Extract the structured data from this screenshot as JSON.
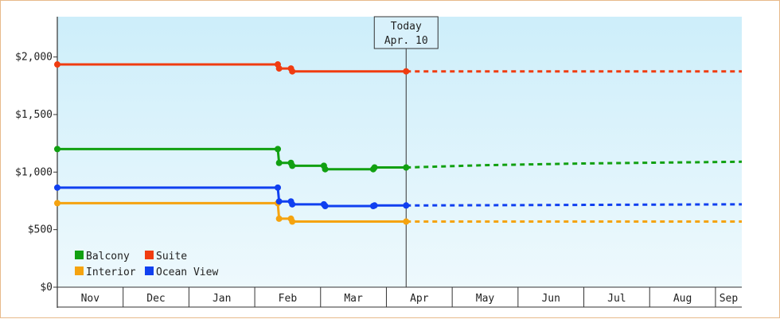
{
  "chart_data": {
    "type": "line",
    "ylim": [
      0,
      2350
    ],
    "yticks": [
      {
        "value": 0,
        "label": "$0"
      },
      {
        "value": 500,
        "label": "$500"
      },
      {
        "value": 1000,
        "label": "$1,000"
      },
      {
        "value": 1500,
        "label": "$1,500"
      },
      {
        "value": 2000,
        "label": "$2,000"
      }
    ],
    "x_domain": [
      0,
      10.4
    ],
    "months": [
      "Nov",
      "Dec",
      "Jan",
      "Feb",
      "Mar",
      "Apr",
      "May",
      "Jun",
      "Jul",
      "Aug",
      "Sep"
    ],
    "today": {
      "x": 5.3,
      "title": "Today",
      "date": "Apr. 10"
    },
    "legend_placement": "bottom-left",
    "grid": false,
    "colors": {
      "Balcony": "#11a011",
      "Suite": "#f03c10",
      "Interior": "#f5a30f",
      "Ocean View": "#1040f0"
    },
    "series": [
      {
        "name": "Balcony",
        "history": [
          [
            0,
            1200
          ],
          [
            3.35,
            1200
          ],
          [
            3.37,
            1080
          ],
          [
            3.55,
            1080
          ],
          [
            3.57,
            1055
          ],
          [
            4.05,
            1055
          ],
          [
            4.07,
            1025
          ],
          [
            4.8,
            1025
          ],
          [
            4.82,
            1040
          ],
          [
            5.3,
            1040
          ]
        ],
        "projection": [
          [
            5.3,
            1040
          ],
          [
            6.5,
            1060
          ],
          [
            8.0,
            1075
          ],
          [
            10.4,
            1090
          ]
        ]
      },
      {
        "name": "Suite",
        "history": [
          [
            0,
            1935
          ],
          [
            3.35,
            1935
          ],
          [
            3.37,
            1900
          ],
          [
            3.55,
            1900
          ],
          [
            3.57,
            1875
          ],
          [
            5.3,
            1875
          ]
        ],
        "projection": [
          [
            5.3,
            1875
          ],
          [
            10.4,
            1875
          ]
        ]
      },
      {
        "name": "Interior",
        "history": [
          [
            0,
            730
          ],
          [
            3.35,
            730
          ],
          [
            3.37,
            595
          ],
          [
            3.55,
            595
          ],
          [
            3.57,
            570
          ],
          [
            5.3,
            570
          ]
        ],
        "projection": [
          [
            5.3,
            570
          ],
          [
            10.4,
            570
          ]
        ]
      },
      {
        "name": "Ocean View",
        "history": [
          [
            0,
            865
          ],
          [
            3.35,
            865
          ],
          [
            3.37,
            745
          ],
          [
            3.55,
            745
          ],
          [
            3.57,
            720
          ],
          [
            4.05,
            720
          ],
          [
            4.07,
            705
          ],
          [
            4.8,
            705
          ],
          [
            4.82,
            710
          ],
          [
            5.3,
            710
          ]
        ],
        "projection": [
          [
            5.3,
            710
          ],
          [
            6.5,
            712
          ],
          [
            8.0,
            715
          ],
          [
            10.4,
            720
          ]
        ]
      }
    ],
    "markers": {
      "Balcony": [
        [
          0,
          1200
        ],
        [
          3.35,
          1200
        ],
        [
          3.37,
          1080
        ],
        [
          3.55,
          1080
        ],
        [
          3.57,
          1055
        ],
        [
          4.05,
          1055
        ],
        [
          4.07,
          1025
        ],
        [
          4.8,
          1025
        ],
        [
          4.82,
          1040
        ],
        [
          5.3,
          1040
        ]
      ],
      "Suite": [
        [
          0,
          1935
        ],
        [
          3.35,
          1935
        ],
        [
          3.37,
          1900
        ],
        [
          3.55,
          1900
        ],
        [
          3.57,
          1875
        ],
        [
          5.3,
          1875
        ]
      ],
      "Interior": [
        [
          0,
          730
        ],
        [
          3.35,
          730
        ],
        [
          3.37,
          595
        ],
        [
          3.55,
          595
        ],
        [
          3.57,
          570
        ],
        [
          5.3,
          570
        ]
      ],
      "Ocean View": [
        [
          0,
          865
        ],
        [
          3.35,
          865
        ],
        [
          3.37,
          745
        ],
        [
          3.55,
          745
        ],
        [
          3.57,
          720
        ],
        [
          4.05,
          720
        ],
        [
          4.07,
          705
        ],
        [
          4.8,
          705
        ],
        [
          4.82,
          710
        ],
        [
          5.3,
          710
        ]
      ]
    },
    "legend": [
      {
        "name": "Balcony"
      },
      {
        "name": "Suite"
      },
      {
        "name": "Interior"
      },
      {
        "name": "Ocean View"
      }
    ]
  }
}
